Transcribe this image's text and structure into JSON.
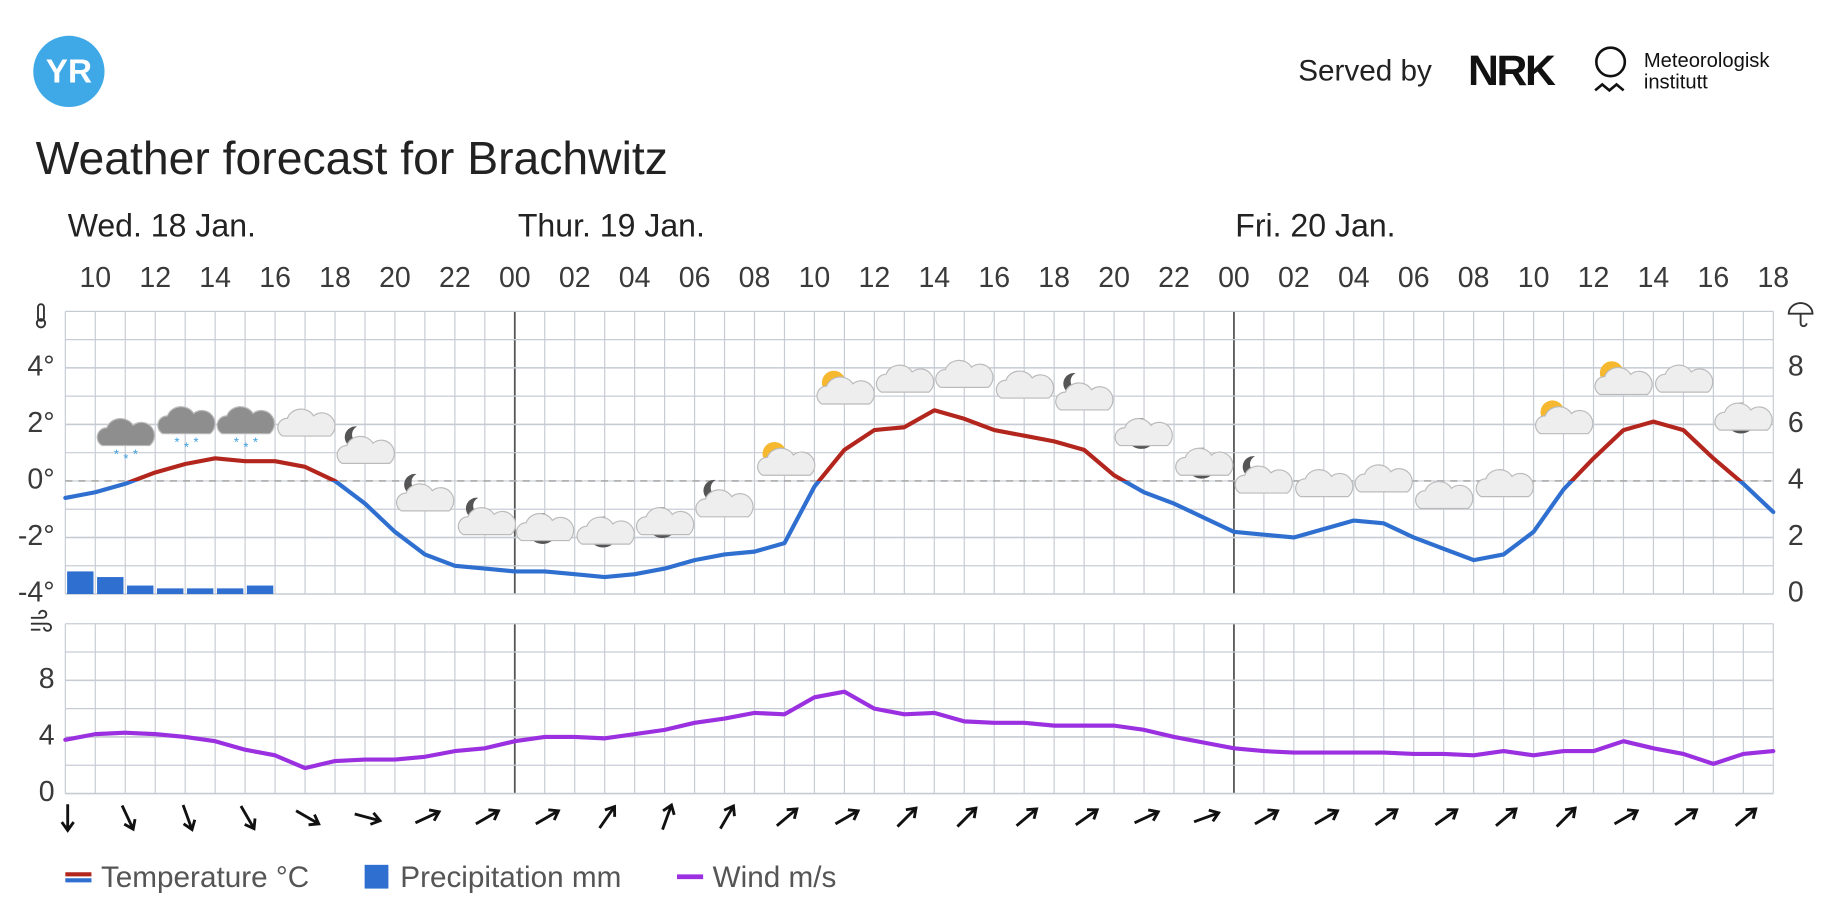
{
  "header": {
    "logo": "YR",
    "served_by": "Served by",
    "partner": "NRK",
    "institute": [
      "Meteorologisk",
      "institutt"
    ]
  },
  "chart_data": [
    {
      "type": "line",
      "title": "Weather forecast for Brachwitz",
      "days": [
        "Wed. 18 Jan.",
        "Thur. 19 Jan.",
        "Fri. 20 Jan."
      ],
      "x": [
        9,
        10,
        11,
        12,
        13,
        14,
        15,
        16,
        17,
        18,
        19,
        20,
        21,
        22,
        23,
        24,
        25,
        26,
        27,
        28,
        29,
        30,
        31,
        32,
        33,
        34,
        35,
        36,
        37,
        38,
        39,
        40,
        41,
        42,
        43,
        44,
        45,
        46,
        47,
        48,
        49,
        50,
        51,
        52,
        53,
        54,
        55,
        56,
        57,
        58,
        59,
        60,
        61,
        62,
        63,
        64,
        65,
        66
      ],
      "xlim": [
        9,
        66
      ],
      "xticks": [
        10,
        12,
        14,
        16,
        18,
        20,
        22,
        {
          "value": 24,
          "label": "00"
        },
        {
          "value": 26,
          "label": "02"
        },
        {
          "value": 28,
          "label": "04"
        },
        {
          "value": 30,
          "label": "06"
        },
        {
          "value": 32,
          "label": "08"
        },
        {
          "value": 34,
          "label": "10"
        },
        {
          "value": 36,
          "label": "12"
        },
        {
          "value": 38,
          "label": "14"
        },
        {
          "value": 40,
          "label": "16"
        },
        {
          "value": 42,
          "label": "18"
        },
        {
          "value": 44,
          "label": "20"
        },
        {
          "value": 46,
          "label": "22"
        },
        {
          "value": 48,
          "label": "00"
        },
        {
          "value": 50,
          "label": "02"
        },
        {
          "value": 52,
          "label": "04"
        },
        {
          "value": 54,
          "label": "06"
        },
        {
          "value": 56,
          "label": "08"
        },
        {
          "value": 58,
          "label": "10"
        },
        {
          "value": 60,
          "label": "12"
        },
        {
          "value": 62,
          "label": "14"
        },
        {
          "value": 64,
          "label": "16"
        },
        {
          "value": 66,
          "label": "18"
        }
      ],
      "ylim": [
        -4,
        6
      ],
      "yticks": [
        {
          "value": -4,
          "label": "-4°"
        },
        {
          "value": -2,
          "label": "-2°"
        },
        {
          "value": 0,
          "label": "0°"
        },
        {
          "value": 2,
          "label": "2°"
        },
        {
          "value": 4,
          "label": "4°"
        }
      ],
      "y2lim": [
        0,
        10
      ],
      "y2ticks": [
        0,
        2,
        4,
        6,
        8
      ],
      "grid": true,
      "series": [
        {
          "name": "Temperature °C",
          "color": "#b3261e",
          "color_below_zero": "#2f6fd0",
          "values": [
            -0.6,
            -0.4,
            -0.1,
            0.3,
            0.6,
            0.8,
            0.7,
            0.7,
            0.5,
            0,
            -0.8,
            -1.8,
            -2.6,
            -3.0,
            -3.1,
            -3.2,
            -3.2,
            -3.3,
            -3.4,
            -3.3,
            -3.1,
            -2.8,
            -2.6,
            -2.5,
            -2.2,
            -0.2,
            1.1,
            1.8,
            1.9,
            2.5,
            2.2,
            1.8,
            1.6,
            1.4,
            1.1,
            0.2,
            -0.4,
            -0.8,
            -1.3,
            -1.8,
            -1.9,
            -2.0,
            -1.7,
            -1.4,
            -1.5,
            -2.0,
            -2.4,
            -2.8,
            -2.6,
            -1.8,
            -0.3,
            0.8,
            1.8,
            2.1,
            1.8,
            0.8,
            -0.1,
            -1.1
          ]
        },
        {
          "name": "Precipitation mm",
          "type": "bar",
          "axis": "y2",
          "color": "#2f6fd0",
          "x": [
            9,
            10,
            11,
            12,
            13,
            14,
            15
          ],
          "values": [
            0.8,
            0.6,
            0.3,
            0.2,
            0.2,
            0.2,
            0.3
          ]
        }
      ]
    },
    {
      "type": "line",
      "x": [
        9,
        10,
        11,
        12,
        13,
        14,
        15,
        16,
        17,
        18,
        19,
        20,
        21,
        22,
        23,
        24,
        25,
        26,
        27,
        28,
        29,
        30,
        31,
        32,
        33,
        34,
        35,
        36,
        37,
        38,
        39,
        40,
        41,
        42,
        43,
        44,
        45,
        46,
        47,
        48,
        49,
        50,
        51,
        52,
        53,
        54,
        55,
        56,
        57,
        58,
        59,
        60,
        61,
        62,
        63,
        64,
        65,
        66
      ],
      "xlim": [
        9,
        66
      ],
      "ylim": [
        0,
        12
      ],
      "yticks": [
        0,
        4,
        8
      ],
      "grid": true,
      "series": [
        {
          "name": "Wind m/s",
          "color": "#9b30e0",
          "values": [
            3.8,
            4.2,
            4.3,
            4.2,
            4.0,
            3.7,
            3.1,
            2.7,
            1.8,
            2.3,
            2.4,
            2.4,
            2.6,
            3.0,
            3.2,
            3.7,
            4.0,
            4.0,
            3.9,
            4.2,
            4.5,
            5.0,
            5.3,
            5.7,
            5.6,
            6.8,
            7.2,
            6.0,
            5.6,
            5.7,
            5.1,
            5.0,
            5.0,
            4.8,
            4.8,
            4.8,
            4.5,
            4.0,
            3.6,
            3.2,
            3.0,
            2.9,
            2.9,
            2.9,
            2.9,
            2.8,
            2.8,
            2.7,
            3.0,
            2.7,
            3.0,
            3.0,
            3.7,
            3.2,
            2.8,
            2.1,
            2.8,
            3.0
          ]
        }
      ],
      "wind_arrow_x": [
        9,
        11,
        13,
        15,
        17,
        19,
        21,
        23,
        25,
        27,
        29,
        31,
        33,
        35,
        37,
        39,
        41,
        43,
        45,
        47,
        49,
        51,
        53,
        55,
        57,
        59,
        61,
        63,
        65
      ],
      "wind_arrow_heading": [
        180,
        155,
        160,
        150,
        120,
        105,
        65,
        60,
        60,
        35,
        20,
        30,
        50,
        60,
        45,
        45,
        50,
        55,
        65,
        70,
        60,
        60,
        55,
        55,
        50,
        45,
        60,
        55,
        50
      ]
    }
  ]
}
